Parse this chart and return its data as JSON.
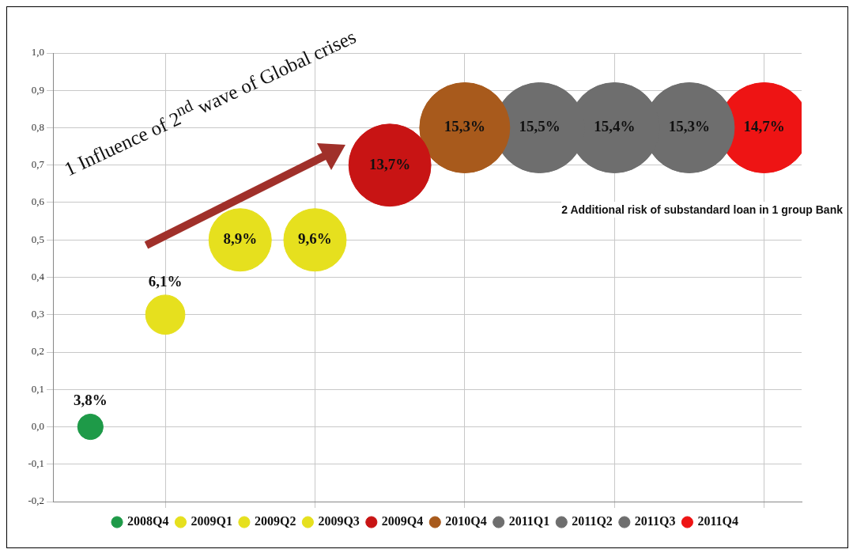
{
  "chart_data": {
    "type": "bubble",
    "categories": [
      null,
      null,
      null,
      null,
      null,
      null,
      null,
      null,
      null,
      null
    ],
    "series": [
      {
        "name": "2008Q4",
        "color": "#1e9a48",
        "values": [
          0.0,
          null,
          null,
          null,
          null,
          null,
          null,
          null,
          null,
          null
        ],
        "sizes": [
          0.08,
          null,
          null,
          null,
          null,
          null,
          null,
          null,
          null,
          null
        ]
      },
      {
        "name": "2009Q1",
        "color": "#e6e01e",
        "values": [
          null,
          0.3,
          null,
          null,
          null,
          null,
          null,
          null,
          null,
          null
        ],
        "sizes": [
          null,
          0.19,
          null,
          null,
          null,
          null,
          null,
          null,
          null,
          null
        ]
      },
      {
        "name": "2009Q2",
        "color": "#e6e01e",
        "values": [
          null,
          null,
          0.5,
          null,
          null,
          null,
          null,
          null,
          null,
          null
        ],
        "sizes": [
          null,
          null,
          0.48,
          null,
          null,
          null,
          null,
          null,
          null,
          null
        ]
      },
      {
        "name": "2009Q3",
        "color": "#e6e01e",
        "values": [
          null,
          null,
          null,
          0.5,
          null,
          null,
          null,
          null,
          null,
          null
        ],
        "sizes": [
          null,
          null,
          null,
          0.48,
          null,
          null,
          null,
          null,
          null,
          null
        ]
      },
      {
        "name": "2009Q4",
        "color": "#c81414",
        "values": [
          null,
          null,
          null,
          null,
          0.7,
          null,
          null,
          null,
          null,
          null
        ],
        "sizes": [
          null,
          null,
          null,
          null,
          0.83,
          null,
          null,
          null,
          null,
          null
        ]
      },
      {
        "name": "2010Q4",
        "color": "#a85a1c",
        "values": [
          null,
          null,
          null,
          null,
          null,
          0.8,
          null,
          null,
          null,
          null
        ],
        "sizes": [
          null,
          null,
          null,
          null,
          null,
          1,
          null,
          null,
          null,
          null
        ]
      },
      {
        "name": "2011Q1",
        "color": "#6e6e6e",
        "values": [
          null,
          null,
          null,
          null,
          null,
          null,
          0.8,
          null,
          null,
          null
        ],
        "sizes": [
          null,
          null,
          null,
          null,
          null,
          null,
          1,
          null,
          null,
          null
        ]
      },
      {
        "name": "2011Q2",
        "color": "#6e6e6e",
        "values": [
          null,
          null,
          null,
          null,
          null,
          null,
          null,
          0.8,
          null,
          null
        ],
        "sizes": [
          null,
          null,
          null,
          null,
          null,
          null,
          null,
          1,
          null,
          null
        ]
      },
      {
        "name": "2011Q3",
        "color": "#6e6e6e",
        "values": [
          null,
          null,
          null,
          null,
          null,
          null,
          null,
          null,
          0.8,
          null
        ],
        "sizes": [
          null,
          null,
          null,
          null,
          null,
          null,
          null,
          null,
          1,
          null
        ]
      },
      {
        "name": "2011Q4",
        "color": "#ee1414",
        "values": [
          null,
          null,
          null,
          null,
          null,
          null,
          null,
          null,
          null,
          0.8
        ],
        "sizes": [
          null,
          null,
          null,
          null,
          null,
          null,
          null,
          null,
          null,
          1
        ]
      }
    ],
    "ylim": [
      -0.2,
      1.0
    ],
    "yticks": [
      {
        "value": -0.2,
        "label": "-0,2"
      },
      {
        "value": -0.1,
        "label": "-0,1"
      },
      {
        "value": 0,
        "label": "0,0"
      },
      {
        "value": 0.1,
        "label": "0,1"
      },
      {
        "value": 0.2,
        "label": "0,2"
      },
      {
        "value": 0.3,
        "label": "0,3"
      },
      {
        "value": 0.4,
        "label": "0,4"
      },
      {
        "value": 0.5,
        "label": "0,5"
      },
      {
        "value": 0.6,
        "label": "0,6"
      },
      {
        "value": 0.7,
        "label": "0,7"
      },
      {
        "value": 0.8,
        "label": "0,8"
      },
      {
        "value": 0.9,
        "label": "0,9"
      },
      {
        "value": 1.0,
        "label": "1,0"
      }
    ],
    "tick_labels": "y",
    "grid": true,
    "legend": "bottom",
    "annotations": [
      "1 Influence of 2$^{nd}$ wave of Global crises",
      "2 Additional risk of substandard loan in 1 group Bank",
      "3,8%",
      "6,1%",
      "8,9%",
      "9,6%",
      "13,7%",
      "15,3%",
      "15,5%",
      "15,4%",
      "15,3%",
      "14,7%"
    ]
  }
}
